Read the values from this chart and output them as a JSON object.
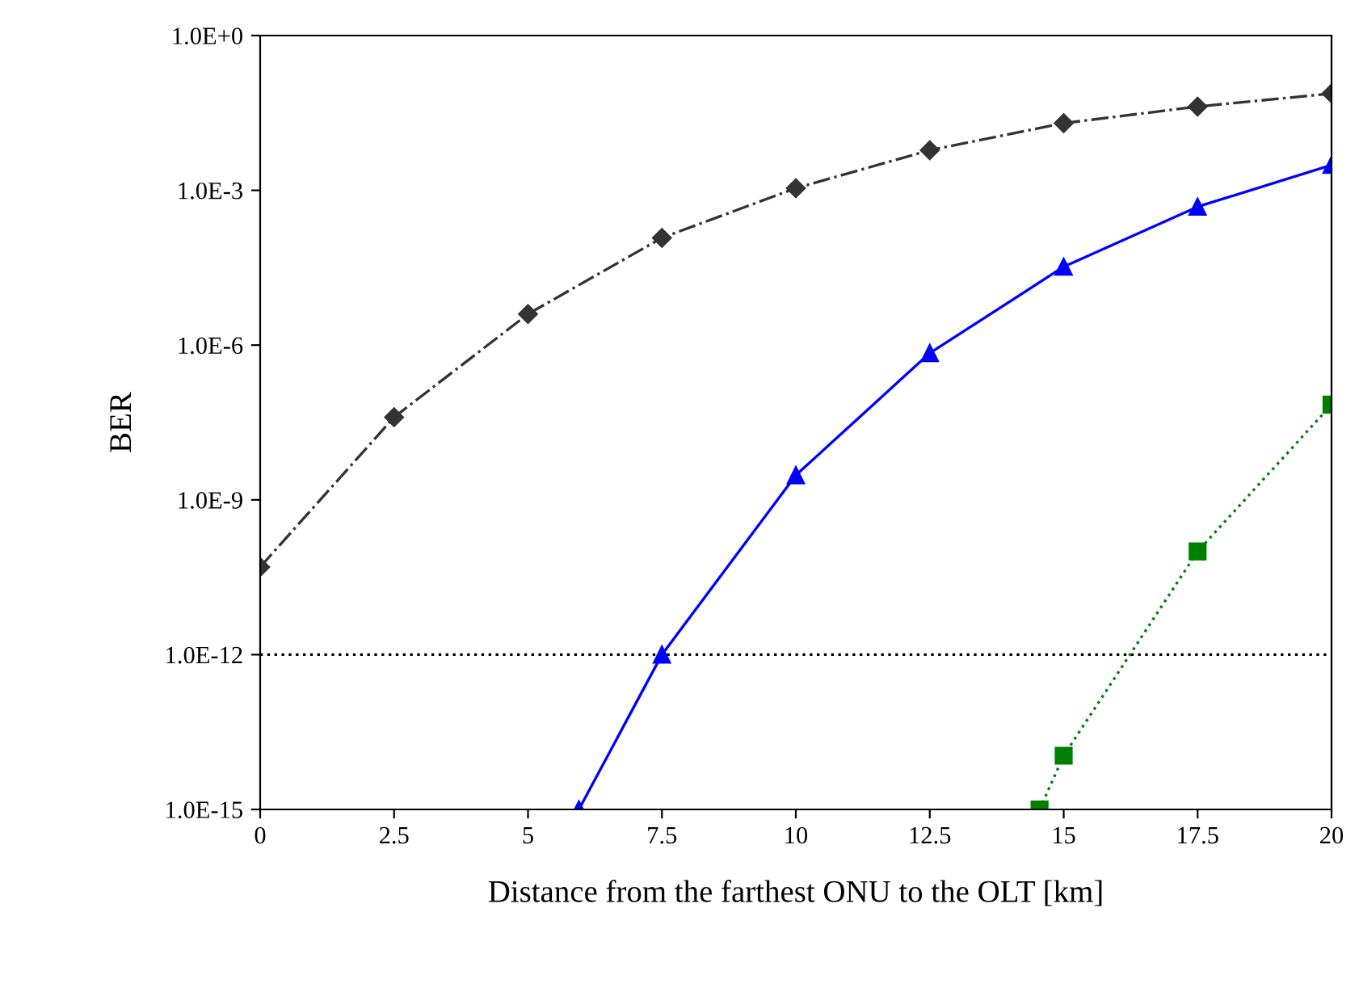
{
  "chart_data": {
    "type": "line",
    "xlabel": "Distance from the farthest ONU to the OLT [km]",
    "ylabel": "BER",
    "log": "y",
    "xlim": [
      0,
      20
    ],
    "xticks": [
      0,
      2.5,
      5,
      7.5,
      10,
      12.5,
      15,
      17.5,
      20
    ],
    "ylim": [
      1e-15,
      1
    ],
    "yticks": [
      {
        "value": 1e-15,
        "label": "1.0E-15"
      },
      {
        "value": 1e-12,
        "label": "1.0E-12"
      },
      {
        "value": 1e-09,
        "label": "1.0E-9"
      },
      {
        "value": 1e-06,
        "label": "1.0E-6"
      },
      {
        "value": 0.001,
        "label": "1.0E-3"
      },
      {
        "value": 1,
        "label": "1.0E+0"
      }
    ],
    "grid": false,
    "series": [
      {
        "color": "#333333",
        "marker": "diamond",
        "line_style": "dashdot",
        "x": [
          0,
          2.5,
          5,
          7.5,
          10,
          12.5,
          15,
          17.5,
          20
        ],
        "values": [
          5e-11,
          4e-08,
          4e-06,
          0.00012,
          0.0011,
          0.006,
          0.02,
          0.042,
          0.075
        ]
      },
      {
        "color": "#0000ff",
        "marker": "triangle",
        "line_style": "solid",
        "x": [
          5.95,
          7.5,
          10,
          12.5,
          15,
          17.5,
          20
        ],
        "values": [
          1e-15,
          1e-12,
          3e-09,
          7e-07,
          3.3e-05,
          0.00048,
          0.0031
        ]
      },
      {
        "color": "#008000",
        "marker": "square",
        "line_style": "dotted",
        "x": [
          14.55,
          15,
          17.5,
          20
        ],
        "values": [
          1e-15,
          1.1e-14,
          1e-10,
          7e-08
        ]
      }
    ],
    "ref_lines": [
      {
        "axis": "y",
        "value": 1e-12,
        "color": "#000000",
        "line_style": "dotted"
      }
    ]
  }
}
